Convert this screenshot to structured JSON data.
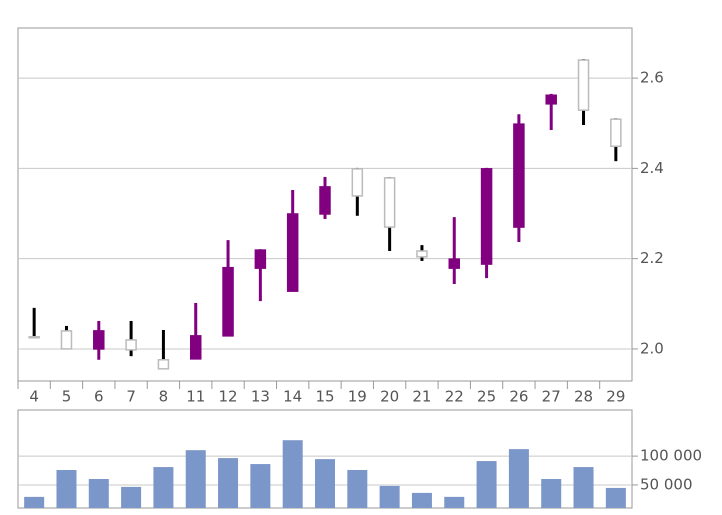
{
  "chart_data": [
    {
      "type": "candlestick",
      "categories": [
        "4",
        "5",
        "6",
        "7",
        "8",
        "11",
        "12",
        "13",
        "14",
        "15",
        "19",
        "20",
        "21",
        "22",
        "25",
        "26",
        "27",
        "28",
        "29"
      ],
      "open": [
        2.027,
        2.0,
        2.04,
        1.998,
        1.956,
        2.029,
        2.18,
        2.219,
        2.299,
        2.359,
        2.339,
        2.27,
        2.204,
        2.199,
        2.399,
        2.498,
        2.562,
        2.529,
        2.449
      ],
      "high": [
        2.091,
        2.051,
        2.062,
        2.062,
        2.042,
        2.102,
        2.241,
        2.221,
        2.352,
        2.381,
        2.401,
        2.381,
        2.23,
        2.292,
        2.401,
        2.52,
        2.565,
        2.642,
        2.511
      ],
      "low": [
        2.024,
        2.0,
        1.976,
        1.984,
        1.956,
        1.978,
        2.029,
        2.106,
        2.128,
        2.288,
        2.295,
        2.217,
        2.195,
        2.144,
        2.157,
        2.237,
        2.485,
        2.496,
        2.416
      ],
      "close": [
        2.027,
        2.04,
        2.0,
        2.02,
        1.976,
        1.978,
        2.029,
        2.179,
        2.128,
        2.299,
        2.399,
        2.379,
        2.217,
        2.179,
        2.188,
        2.27,
        2.543,
        2.64,
        2.509
      ],
      "up_color": "#ffffff",
      "down_color": "#800080",
      "ylim": [
        1.929,
        2.711
      ],
      "yticks": [
        {
          "value": 2.0,
          "label": "2.0"
        },
        {
          "value": 2.2,
          "label": "2.2"
        },
        {
          "value": 2.4,
          "label": "2.4"
        },
        {
          "value": 2.6,
          "label": "2.6"
        }
      ],
      "grid": true
    },
    {
      "type": "bar",
      "values": [
        29300,
        75900,
        60300,
        46600,
        81000,
        110300,
        96600,
        86200,
        127600,
        94800,
        75900,
        48300,
        36200,
        29300,
        91400,
        112100,
        60300,
        81000,
        44800
      ],
      "color": "#7b96c8",
      "ylim": [
        10000,
        180000
      ],
      "yticks": [
        {
          "value": 50000,
          "label": "50 000"
        },
        {
          "value": 100000,
          "label": "100 000"
        }
      ],
      "grid": true
    }
  ]
}
